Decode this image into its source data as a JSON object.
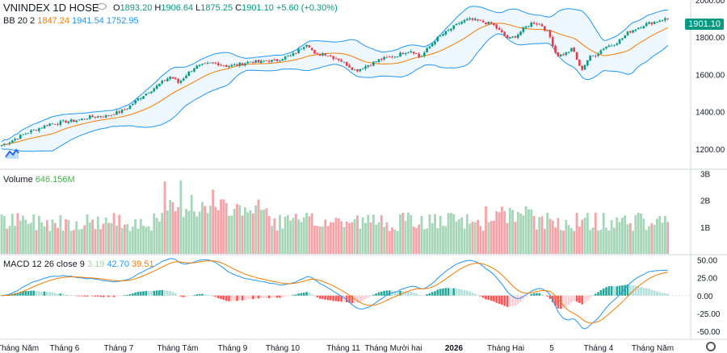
{
  "header": {
    "symbol": "VNINDEX",
    "interval": "1D",
    "exchange": "HOSE",
    "open_label": "O",
    "open": "1893.20",
    "high_label": "H",
    "high": "1906.64",
    "low_label": "L",
    "low": "1875.25",
    "close_label": "C",
    "close": "1901.10",
    "change": "+5.60 (+0.30%)"
  },
  "bb": {
    "name": "BB 20 2",
    "basis": "1847.24",
    "upper": "1941.54",
    "lower": "1752.95"
  },
  "volume": {
    "name": "Volume",
    "value": "646.156M"
  },
  "macd": {
    "name": "MACD 12 26 close 9",
    "hist": "3.19",
    "macd": "42.70",
    "signal": "39.51"
  },
  "price_tag": "1901.10",
  "colors": {
    "up": "#089981",
    "down": "#f23645",
    "basis": "#f57c00",
    "band": "#2196f3",
    "band_fill": "#e3f2fd",
    "vol_up": "#a5d6b7",
    "vol_down": "#f4a3a8"
  },
  "chart_data": [
    {
      "type": "candlestick",
      "name": "VNINDEX 1D HOSE",
      "x_labels": [
        "Tháng Năm",
        "Tháng 6",
        "Tháng 7",
        "Tháng Tám",
        "Tháng 9",
        "Tháng 10",
        "Tháng 11",
        "Tháng Mười hai",
        "2026",
        "Tháng Hai",
        "5",
        "Tháng 4",
        "Tháng Năm"
      ],
      "y_ticks": [
        1200,
        1400,
        1600,
        1800,
        2000
      ],
      "ylim": [
        1100,
        2000
      ],
      "close_path": [
        [
          0,
          1220
        ],
        [
          10,
          1240
        ],
        [
          20,
          1262
        ],
        [
          30,
          1285
        ],
        [
          40,
          1300
        ],
        [
          50,
          1318
        ],
        [
          60,
          1335
        ],
        [
          70,
          1340
        ],
        [
          80,
          1348
        ],
        [
          90,
          1352
        ],
        [
          100,
          1360
        ],
        [
          110,
          1372
        ],
        [
          120,
          1375
        ],
        [
          130,
          1378
        ],
        [
          140,
          1390
        ],
        [
          150,
          1405
        ],
        [
          160,
          1432
        ],
        [
          170,
          1470
        ],
        [
          180,
          1500
        ],
        [
          190,
          1528
        ],
        [
          200,
          1560
        ],
        [
          210,
          1590
        ],
        [
          220,
          1555
        ],
        [
          230,
          1600
        ],
        [
          240,
          1640
        ],
        [
          250,
          1650
        ],
        [
          260,
          1660
        ],
        [
          270,
          1658
        ],
        [
          280,
          1645
        ],
        [
          290,
          1650
        ],
        [
          300,
          1660
        ],
        [
          310,
          1670
        ],
        [
          320,
          1665
        ],
        [
          330,
          1675
        ],
        [
          340,
          1672
        ],
        [
          350,
          1690
        ],
        [
          360,
          1700
        ],
        [
          370,
          1735
        ],
        [
          380,
          1770
        ],
        [
          390,
          1700
        ],
        [
          400,
          1715
        ],
        [
          410,
          1695
        ],
        [
          420,
          1680
        ],
        [
          430,
          1650
        ],
        [
          440,
          1620
        ],
        [
          450,
          1640
        ],
        [
          460,
          1660
        ],
        [
          470,
          1680
        ],
        [
          480,
          1690
        ],
        [
          490,
          1700
        ],
        [
          500,
          1720
        ],
        [
          510,
          1730
        ],
        [
          520,
          1690
        ],
        [
          530,
          1740
        ],
        [
          540,
          1790
        ],
        [
          550,
          1820
        ],
        [
          560,
          1850
        ],
        [
          570,
          1880
        ],
        [
          580,
          1895
        ],
        [
          590,
          1890
        ],
        [
          600,
          1880
        ],
        [
          610,
          1870
        ],
        [
          620,
          1830
        ],
        [
          630,
          1790
        ],
        [
          640,
          1810
        ],
        [
          650,
          1850
        ],
        [
          660,
          1880
        ],
        [
          670,
          1870
        ],
        [
          680,
          1820
        ],
        [
          690,
          1700
        ],
        [
          700,
          1710
        ],
        [
          710,
          1740
        ],
        [
          720,
          1620
        ],
        [
          730,
          1690
        ],
        [
          740,
          1710
        ],
        [
          750,
          1750
        ],
        [
          760,
          1760
        ],
        [
          770,
          1790
        ],
        [
          780,
          1830
        ],
        [
          790,
          1850
        ],
        [
          800,
          1870
        ],
        [
          810,
          1880
        ],
        [
          820,
          1895
        ],
        [
          830,
          1901.1
        ]
      ],
      "bb_basis": "1847.24",
      "bb_upper": "1941.54",
      "bb_lower": "1752.95"
    },
    {
      "type": "bar",
      "name": "Volume",
      "y_ticks": [
        "1B",
        "2B",
        "3B"
      ],
      "ylim": [
        0,
        3.1
      ],
      "last_value": "646.156M"
    },
    {
      "type": "line",
      "name": "MACD 12 26 close 9",
      "y_ticks": [
        -50,
        -25,
        0,
        25,
        50
      ],
      "ylim": [
        -60,
        55
      ],
      "macd_last": 42.7,
      "signal_last": 39.51,
      "hist_last": 3.19
    }
  ]
}
